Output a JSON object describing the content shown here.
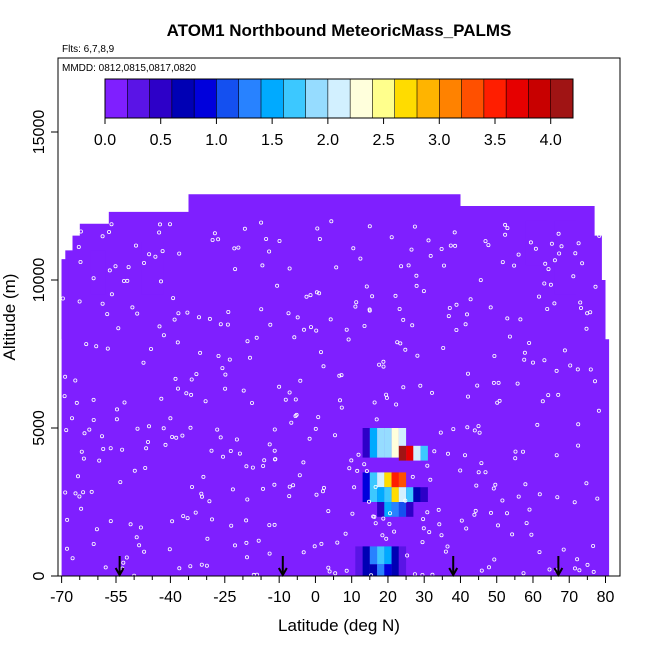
{
  "chart_data": {
    "type": "heatmap",
    "title": "ATOM1 Northbound MeteoricMass_PALMS",
    "notes": [
      "Flts: 6,7,8,9",
      "MMDD: 0812,0815,0817,0820"
    ],
    "xlabel": "Latitude (deg N)",
    "ylabel": "Altitude (m)",
    "xlim": [
      -71,
      84
    ],
    "ylim": [
      0,
      17500
    ],
    "x_ticks": [
      -70,
      -55,
      -40,
      -25,
      -10,
      0,
      10,
      20,
      30,
      40,
      50,
      60,
      70,
      80
    ],
    "x_tick_labels": [
      "-70",
      "-55",
      "-40",
      "-25",
      "-10",
      "0",
      "10",
      "20",
      "30",
      "40",
      "50",
      "60",
      "70",
      "80"
    ],
    "x_minor_ticks": [
      -65,
      -60,
      -50,
      -45,
      -35,
      -30,
      -20,
      -15,
      -5,
      5,
      15,
      25,
      35,
      45,
      55,
      65,
      75
    ],
    "y_ticks": [
      0,
      5000,
      10000,
      15000
    ],
    "y_tick_labels": [
      "0",
      "5000",
      "10000",
      "15000"
    ],
    "colorbar": {
      "range": [
        0,
        4.2
      ],
      "ticks": [
        0.0,
        0.5,
        1.0,
        1.5,
        2.0,
        2.5,
        3.0,
        3.5,
        4.0
      ],
      "tick_labels": [
        "0.0",
        "0.5",
        "1.0",
        "1.5",
        "2.0",
        "2.5",
        "3.0",
        "3.5",
        "4.0"
      ],
      "colors": [
        "#7f1fff",
        "#5a14e6",
        "#2d00c8",
        "#0000b4",
        "#0000dc",
        "#1450f0",
        "#2882ff",
        "#00aaff",
        "#3cc8ff",
        "#96dcff",
        "#d2f0ff",
        "#ffffdc",
        "#ffff8c",
        "#ffdc00",
        "#ffb400",
        "#ff8200",
        "#ff5000",
        "#ff1e00",
        "#e60000",
        "#c80000",
        "#a01414"
      ]
    },
    "background_color": "#7f1fff",
    "domain_outline": [
      [
        -70,
        0
      ],
      [
        -70,
        10700
      ],
      [
        -69,
        10700
      ],
      [
        -69,
        11000
      ],
      [
        -67,
        11000
      ],
      [
        -67,
        11500
      ],
      [
        -65,
        11500
      ],
      [
        -65,
        11900
      ],
      [
        -57,
        11900
      ],
      [
        -57,
        12000
      ],
      [
        -57,
        12300
      ],
      [
        -35,
        12300
      ],
      [
        -35,
        12900
      ],
      [
        -15,
        12900
      ],
      [
        -15,
        12900
      ],
      [
        40,
        12900
      ],
      [
        40,
        12500
      ],
      [
        47,
        12500
      ],
      [
        47,
        12500
      ],
      [
        77,
        12500
      ],
      [
        77,
        11500
      ],
      [
        79,
        11500
      ],
      [
        79,
        10000
      ],
      [
        80,
        10000
      ],
      [
        80,
        8000
      ],
      [
        81,
        8000
      ],
      [
        81,
        0
      ]
    ],
    "values": [
      {
        "lat": [
          -70,
          -68
        ],
        "alt": [
          8000,
          10700
        ],
        "value": 0.15
      },
      {
        "lat": [
          -62,
          -58
        ],
        "alt": [
          9500,
          11000
        ],
        "value": 0.1
      },
      {
        "lat": [
          -48,
          -42
        ],
        "alt": [
          9500,
          11300
        ],
        "value": 0.08
      },
      {
        "lat": [
          66,
          72
        ],
        "alt": [
          9500,
          12000
        ],
        "value": 0.12
      },
      {
        "lat": [
          58,
          64
        ],
        "alt": [
          10500,
          12000
        ],
        "value": 0.08
      },
      {
        "lat": [
          13,
          15
        ],
        "alt": [
          4000,
          5000
        ],
        "value": 0.5
      },
      {
        "lat": [
          15,
          17
        ],
        "alt": [
          4000,
          5000
        ],
        "value": 1.5
      },
      {
        "lat": [
          17,
          19
        ],
        "alt": [
          4000,
          5000
        ],
        "value": 1.8
      },
      {
        "lat": [
          19,
          21
        ],
        "alt": [
          4000,
          5000
        ],
        "value": 1.9
      },
      {
        "lat": [
          21,
          23
        ],
        "alt": [
          4000,
          5000
        ],
        "value": 2.2
      },
      {
        "lat": [
          23,
          25
        ],
        "alt": [
          3900,
          4400
        ],
        "value": 4.0
      },
      {
        "lat": [
          23,
          25
        ],
        "alt": [
          4400,
          5000
        ],
        "value": 2.0
      },
      {
        "lat": [
          25,
          27
        ],
        "alt": [
          3900,
          4400
        ],
        "value": 3.6
      },
      {
        "lat": [
          27,
          29
        ],
        "alt": [
          3900,
          4400
        ],
        "value": 2.1
      },
      {
        "lat": [
          29,
          31
        ],
        "alt": [
          3900,
          4400
        ],
        "value": 1.7
      },
      {
        "lat": [
          13,
          15
        ],
        "alt": [
          2500,
          3500
        ],
        "value": 0.8
      },
      {
        "lat": [
          15,
          17
        ],
        "alt": [
          2500,
          3500
        ],
        "value": 1.6
      },
      {
        "lat": [
          17,
          19
        ],
        "alt": [
          3000,
          3500
        ],
        "value": 2.0
      },
      {
        "lat": [
          19,
          21
        ],
        "alt": [
          3000,
          3500
        ],
        "value": 2.6
      },
      {
        "lat": [
          21,
          23
        ],
        "alt": [
          3000,
          3500
        ],
        "value": 3.5
      },
      {
        "lat": [
          23,
          25
        ],
        "alt": [
          3000,
          3500
        ],
        "value": 3.2
      },
      {
        "lat": [
          17,
          19
        ],
        "alt": [
          2500,
          3000
        ],
        "value": 1.4
      },
      {
        "lat": [
          19,
          21
        ],
        "alt": [
          2500,
          3000
        ],
        "value": 1.7
      },
      {
        "lat": [
          21,
          23
        ],
        "alt": [
          2500,
          3000
        ],
        "value": 2.7
      },
      {
        "lat": [
          23,
          25
        ],
        "alt": [
          2500,
          3000
        ],
        "value": 2.1
      },
      {
        "lat": [
          25,
          27
        ],
        "alt": [
          2500,
          3000
        ],
        "value": 1.6
      },
      {
        "lat": [
          27,
          29
        ],
        "alt": [
          2500,
          3000
        ],
        "value": 0.6
      },
      {
        "lat": [
          29,
          31
        ],
        "alt": [
          2500,
          3000
        ],
        "value": 0.4
      },
      {
        "lat": [
          17,
          19
        ],
        "alt": [
          2000,
          2500
        ],
        "value": 0.4
      },
      {
        "lat": [
          19,
          21
        ],
        "alt": [
          2000,
          2500
        ],
        "value": 1.5
      },
      {
        "lat": [
          21,
          23
        ],
        "alt": [
          2000,
          2500
        ],
        "value": 1.3
      },
      {
        "lat": [
          23,
          25
        ],
        "alt": [
          2000,
          2500
        ],
        "value": 1.1
      },
      {
        "lat": [
          25,
          27
        ],
        "alt": [
          2000,
          2500
        ],
        "value": 0.5
      },
      {
        "lat": [
          11,
          13
        ],
        "alt": [
          0,
          1000
        ],
        "value": 0.3
      },
      {
        "lat": [
          13,
          15
        ],
        "alt": [
          0,
          1000
        ],
        "value": 0.6
      },
      {
        "lat": [
          15,
          17
        ],
        "alt": [
          0,
          400
        ],
        "value": 0.7
      },
      {
        "lat": [
          15,
          17
        ],
        "alt": [
          400,
          1000
        ],
        "value": 1.2
      },
      {
        "lat": [
          17,
          19
        ],
        "alt": [
          400,
          1000
        ],
        "value": 1.7
      },
      {
        "lat": [
          17,
          19
        ],
        "alt": [
          0,
          400
        ],
        "value": 1.2
      },
      {
        "lat": [
          19,
          21
        ],
        "alt": [
          400,
          1000
        ],
        "value": 1.5
      },
      {
        "lat": [
          19,
          21
        ],
        "alt": [
          0,
          400
        ],
        "value": 0.9
      },
      {
        "lat": [
          21,
          23
        ],
        "alt": [
          0,
          1000
        ],
        "value": 0.6
      },
      {
        "lat": [
          23,
          25
        ],
        "alt": [
          0,
          1000
        ],
        "value": 0.3
      }
    ],
    "flight_track_sample_lats": [
      -69,
      -66,
      -64,
      -61,
      -58,
      -55,
      -52,
      -49,
      -46,
      -43,
      -40,
      -37,
      -34,
      -31,
      -28,
      -25,
      -22,
      -19,
      -16,
      -13,
      -10,
      -7,
      -4,
      -1,
      2,
      5,
      8,
      11,
      14,
      17,
      20,
      23,
      26,
      29,
      32,
      35,
      38,
      41,
      44,
      47,
      50,
      53,
      56,
      59,
      62,
      65,
      68,
      71,
      74,
      77
    ],
    "arrows_at_lat": [
      -54,
      -9,
      38,
      67
    ]
  }
}
